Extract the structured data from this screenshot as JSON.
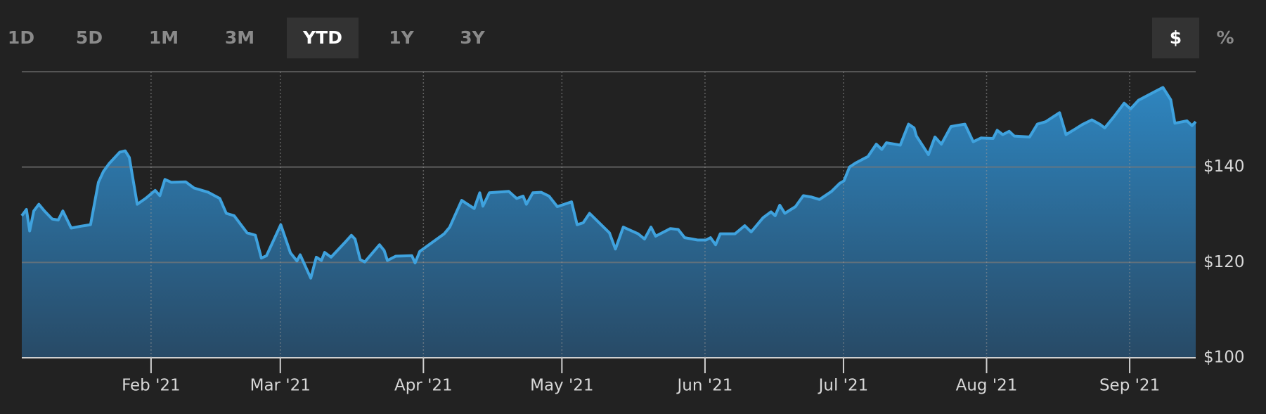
{
  "controls": {
    "ranges": [
      "1D",
      "5D",
      "1M",
      "3M",
      "YTD",
      "1Y",
      "3Y"
    ],
    "active_range": 4,
    "units": [
      "$",
      "%"
    ],
    "active_unit": 0
  },
  "chart_data": {
    "type": "area",
    "color": "#3fa2de",
    "x": [
      0,
      1.0,
      1.7,
      2.6,
      3.7,
      4.9,
      6.6,
      7.9,
      8.9,
      10.7,
      12.8,
      14.9,
      16.6,
      17.7,
      18.9,
      21.2,
      22.4,
      23.3,
      25.0,
      26.8,
      28.9,
      29.9,
      31.0,
      32.4,
      35.5,
      37.3,
      38.7,
      40.4,
      42.9,
      44.3,
      46.0,
      48.8,
      50.6,
      51.9,
      53.0,
      56.1,
      58.2,
      59.6,
      60.3,
      62.6,
      63.8,
      64.9,
      65.6,
      67.0,
      70.1,
      71.4,
      72.2,
      73.3,
      74.3,
      77.5,
      78.5,
      79.2,
      81.0,
      84.5,
      85.2,
      86.2,
      91.5,
      92.7,
      95.3,
      98.0,
      99.2,
      99.9,
      101.3,
      105.5,
      107.2,
      108.6,
      109.3,
      110.7,
      112.5,
      114.2,
      116.0,
      119.1,
      120.3,
      121.6,
      123.0,
      127.3,
      128.6,
      130.3,
      133.5,
      134.9,
      136.3,
      137.3,
      140.5,
      142.2,
      143.6,
      146.4,
      148.2,
      149.2,
      150.3,
      151.3,
      154.5,
      156.6,
      158.0,
      160.6,
      162.3,
      163.2,
      164.2,
      165.3,
      167.6,
      169.3,
      171.1,
      172.8,
      175.4,
      177.2,
      178.1,
      179.3,
      180.7,
      183.3,
      185.1,
      186.3,
      187.3,
      190.3,
      191.2,
      192.1,
      193.3,
      193.8,
      196.4,
      197.8,
      199.2,
      201.3,
      204.3,
      206.1,
      207.8,
      210.4,
      211.3,
      212.5,
      213.9,
      215.0,
      218.3,
      220.0,
      221.8,
      224.8,
      226.2,
      227.9,
      229.7,
      231.8,
      233.5,
      234.6,
      236.7,
      238.8,
      240.2,
      241.9,
      245.4,
      247.2,
      248.9,
      249.8,
      252.4,
      253.5,
      254.3
    ],
    "values": [
      129.8,
      131.1,
      126.6,
      130.8,
      132.2,
      130.8,
      129.1,
      128.9,
      130.8,
      127.2,
      127.6,
      127.9,
      136.8,
      139.1,
      140.7,
      143.1,
      143.4,
      142.0,
      132.2,
      133.4,
      135.1,
      134.0,
      137.4,
      136.8,
      136.9,
      135.6,
      135.2,
      134.7,
      133.4,
      130.3,
      129.8,
      126.2,
      125.7,
      120.9,
      121.4,
      127.9,
      122.0,
      120.3,
      121.6,
      116.7,
      121.1,
      120.4,
      122.1,
      121.1,
      124.3,
      125.7,
      124.9,
      120.6,
      120.1,
      123.7,
      122.5,
      120.4,
      121.3,
      121.4,
      119.9,
      122.3,
      126.0,
      127.4,
      133.0,
      131.3,
      134.6,
      131.8,
      134.6,
      134.9,
      133.4,
      133.9,
      132.2,
      134.6,
      134.7,
      133.9,
      131.7,
      132.7,
      127.9,
      128.3,
      130.3,
      126.2,
      122.8,
      127.4,
      126.0,
      124.9,
      127.4,
      125.5,
      127.1,
      126.9,
      125.2,
      124.7,
      124.7,
      125.2,
      123.7,
      126.0,
      126.0,
      127.7,
      126.4,
      129.4,
      130.6,
      129.8,
      132.0,
      130.3,
      131.7,
      134.0,
      133.7,
      133.2,
      134.9,
      136.6,
      137.1,
      140.0,
      140.9,
      142.2,
      144.8,
      143.7,
      145.1,
      144.6,
      146.8,
      149.0,
      148.2,
      146.5,
      142.6,
      146.3,
      144.8,
      148.5,
      149.0,
      145.3,
      146.1,
      146.0,
      147.7,
      146.8,
      147.5,
      146.5,
      146.3,
      149.0,
      149.5,
      151.4,
      146.8,
      147.8,
      148.9,
      149.9,
      149.0,
      148.2,
      150.7,
      153.4,
      152.2,
      154.0,
      155.8,
      156.7,
      154.1,
      149.2,
      149.7,
      148.7,
      149.5
    ],
    "xlim": [
      0,
      254.3
    ],
    "xticks": [
      {
        "value": 28,
        "label": "Feb '21"
      },
      {
        "value": 56,
        "label": "Mar '21"
      },
      {
        "value": 87,
        "label": "Apr '21"
      },
      {
        "value": 117,
        "label": "May '21"
      },
      {
        "value": 148,
        "label": "Jun '21"
      },
      {
        "value": 178,
        "label": "Jul '21"
      },
      {
        "value": 209,
        "label": "Aug '21"
      },
      {
        "value": 240,
        "label": "Sep '21"
      }
    ],
    "ylim": [
      100,
      160
    ],
    "yticks": [
      {
        "value": 100,
        "label": "$100"
      },
      {
        "value": 120,
        "label": "$120"
      },
      {
        "value": 140,
        "label": "$140"
      }
    ],
    "grid": true
  }
}
